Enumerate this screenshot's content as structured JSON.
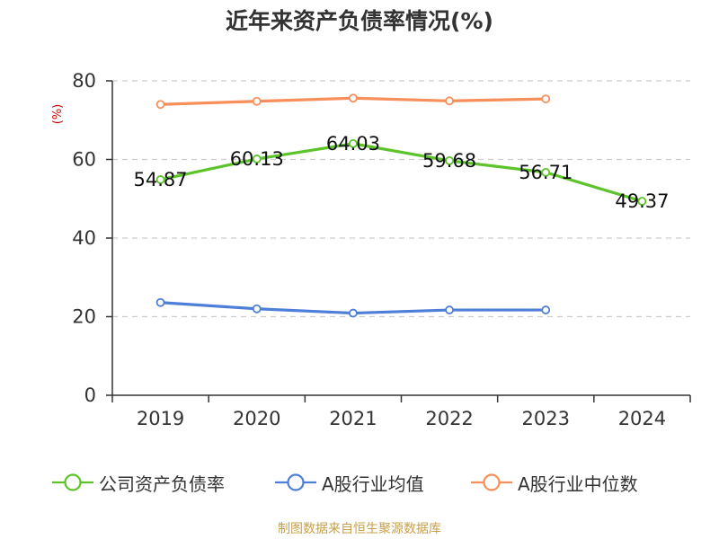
{
  "chart_title": "近年来资产负债率情况(%)",
  "source_note": "制图数据来自恒生聚源数据库",
  "colors": {
    "grid": "#cccccc",
    "axis": "#333333",
    "unit_label": "#cc0000",
    "source_note": "#c8a04a"
  },
  "chart_data": {
    "type": "line",
    "title": "近年来资产负债率情况(%)",
    "ylabel": "(%)",
    "ylim": [
      0,
      80
    ],
    "yticks": [
      0,
      20,
      40,
      60,
      80
    ],
    "grid": true,
    "legend_position": "bottom",
    "categories": [
      "2019",
      "2020",
      "2021",
      "2022",
      "2023",
      "2024"
    ],
    "series": [
      {
        "name": "公司资产负债率",
        "color": "#5cc42a",
        "values": [
          54.87,
          60.13,
          64.03,
          59.68,
          56.71,
          49.37
        ],
        "labels": [
          "54.87",
          "60.13",
          "64.03",
          "59.68",
          "56.71",
          "49.37"
        ]
      },
      {
        "name": "A股行业均值",
        "color": "#4d7fd8",
        "values": [
          23.6,
          22.0,
          20.9,
          21.7,
          21.7,
          null
        ]
      },
      {
        "name": "A股行业中位数",
        "color": "#f78f5a",
        "values": [
          74.0,
          74.8,
          75.6,
          74.9,
          75.4,
          null
        ]
      }
    ]
  }
}
